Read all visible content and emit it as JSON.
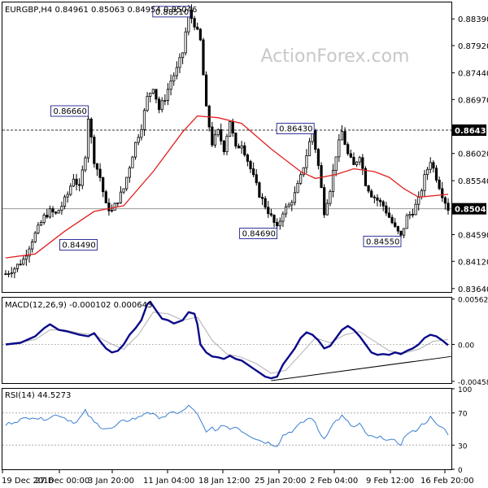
{
  "watermark": "ActionForex.com",
  "price_panel": {
    "header": "EURGBP,H4  0.84961 0.85063 0.84954 0.85046",
    "yticks": [
      "0.88390",
      "0.87920",
      "0.87440",
      "0.86970",
      "0.86020",
      "0.85540",
      "0.84590",
      "0.84120",
      "0.83640"
    ],
    "current_price": "0.85046",
    "resistance_label": "0.86430"
  },
  "macd_panel": {
    "header": "MACD(12,26,9) -0.000102 0.000643",
    "yticks": [
      "0.005627",
      "0.00",
      "-0.004586"
    ]
  },
  "rsi_panel": {
    "header": "RSI(14) 44.5273",
    "yticks": [
      "100",
      "70",
      "30",
      "0"
    ]
  },
  "xticks": [
    "19 Dec 2016",
    "27 Dec 00:00",
    "3 Jan 20:00",
    "11 Jan 04:00",
    "18 Jan 12:00",
    "25 Jan 20:00",
    "2 Feb 04:00",
    "9 Feb 12:00",
    "16 Feb 20:00"
  ],
  "colors": {
    "candles": "#000000",
    "ma": "#e02020",
    "macd": "#0a0a8a",
    "signal": "#b0b0b0",
    "rsi": "#3b7fd0",
    "grid": "#d8d8d8",
    "hline": "#333333",
    "watermark": "#c8c8c8",
    "label_border": "#000080"
  },
  "chart_data": [
    {
      "type": "candlestick",
      "title": "EURGBP,H4",
      "ohlc_header": {
        "open": 0.84961,
        "high": 0.85063,
        "low": 0.84954,
        "close": 0.85046
      },
      "ylim": [
        0.8358,
        0.8868
      ],
      "close_path": [
        [
          0,
          0.839
        ],
        [
          3,
          0.84
        ],
        [
          6,
          0.8415
        ],
        [
          9,
          0.845
        ],
        [
          11,
          0.847
        ],
        [
          13,
          0.849
        ],
        [
          15,
          0.85
        ],
        [
          17,
          0.8495
        ],
        [
          19,
          0.851
        ],
        [
          21,
          0.853
        ],
        [
          23,
          0.856
        ],
        [
          25,
          0.854
        ],
        [
          27,
          0.86
        ],
        [
          28,
          0.8666
        ],
        [
          30,
          0.859
        ],
        [
          32,
          0.856
        ],
        [
          34,
          0.851
        ],
        [
          36,
          0.85
        ],
        [
          38,
          0.852
        ],
        [
          40,
          0.854
        ],
        [
          42,
          0.858
        ],
        [
          44,
          0.862
        ],
        [
          46,
          0.865
        ],
        [
          48,
          0.87
        ],
        [
          50,
          0.872
        ],
        [
          52,
          0.868
        ],
        [
          54,
          0.87
        ],
        [
          56,
          0.873
        ],
        [
          58,
          0.875
        ],
        [
          60,
          0.878
        ],
        [
          62,
          0.8851
        ],
        [
          64,
          0.883
        ],
        [
          66,
          0.88
        ],
        [
          68,
          0.868
        ],
        [
          70,
          0.862
        ],
        [
          72,
          0.864
        ],
        [
          74,
          0.861
        ],
        [
          76,
          0.866
        ],
        [
          78,
          0.861
        ],
        [
          80,
          0.862
        ],
        [
          82,
          0.859
        ],
        [
          84,
          0.856
        ],
        [
          86,
          0.853
        ],
        [
          88,
          0.851
        ],
        [
          90,
          0.849
        ],
        [
          92,
          0.8469
        ],
        [
          94,
          0.85
        ],
        [
          96,
          0.851
        ],
        [
          98,
          0.853
        ],
        [
          100,
          0.856
        ],
        [
          102,
          0.86
        ],
        [
          104,
          0.8643
        ],
        [
          106,
          0.858
        ],
        [
          108,
          0.85
        ],
        [
          110,
          0.854
        ],
        [
          112,
          0.86
        ],
        [
          114,
          0.864
        ],
        [
          116,
          0.86
        ],
        [
          118,
          0.858
        ],
        [
          120,
          0.86
        ],
        [
          122,
          0.855
        ],
        [
          124,
          0.853
        ],
        [
          126,
          0.852
        ],
        [
          128,
          0.851
        ],
        [
          130,
          0.849
        ],
        [
          132,
          0.847
        ],
        [
          134,
          0.8455
        ],
        [
          136,
          0.849
        ],
        [
          138,
          0.85
        ],
        [
          140,
          0.852
        ],
        [
          142,
          0.856
        ],
        [
          144,
          0.859
        ],
        [
          146,
          0.856
        ],
        [
          148,
          0.853
        ],
        [
          150,
          0.8505
        ]
      ],
      "moving_average": [
        [
          0,
          0.8418
        ],
        [
          10,
          0.8425
        ],
        [
          20,
          0.8465
        ],
        [
          30,
          0.85
        ],
        [
          40,
          0.851
        ],
        [
          50,
          0.857
        ],
        [
          60,
          0.864
        ],
        [
          65,
          0.8668
        ],
        [
          72,
          0.8665
        ],
        [
          80,
          0.8655
        ],
        [
          90,
          0.861
        ],
        [
          100,
          0.857
        ],
        [
          105,
          0.8558
        ],
        [
          112,
          0.8565
        ],
        [
          118,
          0.8575
        ],
        [
          125,
          0.857
        ],
        [
          130,
          0.856
        ],
        [
          135,
          0.854
        ],
        [
          140,
          0.8525
        ],
        [
          150,
          0.853
        ]
      ],
      "labeled_levels": [
        {
          "value": 0.8851,
          "bar": 62
        },
        {
          "value": 0.8666,
          "bar": 28
        },
        {
          "value": 0.8643,
          "bar": 104
        },
        {
          "value": 0.8449,
          "bar": 31
        },
        {
          "value": 0.8469,
          "bar": 92
        },
        {
          "value": 0.8455,
          "bar": 134
        }
      ],
      "horizontal_lines": [
        0.8643,
        0.85046
      ],
      "bars": 151
    },
    {
      "type": "line",
      "title": "MACD(12,26,9)",
      "ylim": [
        -0.0048,
        0.0058
      ],
      "macd": [
        [
          0,
          0.0
        ],
        [
          5,
          0.0002
        ],
        [
          10,
          0.001
        ],
        [
          13,
          0.002
        ],
        [
          15,
          0.0025
        ],
        [
          18,
          0.0018
        ],
        [
          21,
          0.0016
        ],
        [
          25,
          0.0012
        ],
        [
          28,
          0.001
        ],
        [
          30,
          0.0014
        ],
        [
          32,
          0.0004
        ],
        [
          34,
          -0.0005
        ],
        [
          36,
          -0.001
        ],
        [
          38,
          -0.0008
        ],
        [
          40,
          0.0
        ],
        [
          42,
          0.0012
        ],
        [
          44,
          0.002
        ],
        [
          46,
          0.003
        ],
        [
          48,
          0.005
        ],
        [
          49,
          0.0053
        ],
        [
          51,
          0.0042
        ],
        [
          53,
          0.0032
        ],
        [
          55,
          0.003
        ],
        [
          57,
          0.0026
        ],
        [
          60,
          0.003
        ],
        [
          62,
          0.004
        ],
        [
          64,
          0.0038
        ],
        [
          65,
          0.0025
        ],
        [
          66,
          0.0
        ],
        [
          68,
          -0.001
        ],
        [
          70,
          -0.0015
        ],
        [
          72,
          -0.0016
        ],
        [
          74,
          -0.0018
        ],
        [
          76,
          -0.0014
        ],
        [
          78,
          -0.0018
        ],
        [
          80,
          -0.002
        ],
        [
          82,
          -0.0025
        ],
        [
          84,
          -0.003
        ],
        [
          86,
          -0.0035
        ],
        [
          88,
          -0.004
        ],
        [
          90,
          -0.0042
        ],
        [
          92,
          -0.004
        ],
        [
          94,
          -0.0025
        ],
        [
          96,
          -0.0015
        ],
        [
          98,
          -0.0005
        ],
        [
          100,
          0.0008
        ],
        [
          102,
          0.0015
        ],
        [
          104,
          0.0012
        ],
        [
          106,
          0.0005
        ],
        [
          108,
          -0.0005
        ],
        [
          110,
          -0.0002
        ],
        [
          112,
          0.0008
        ],
        [
          114,
          0.0018
        ],
        [
          116,
          0.0023
        ],
        [
          118,
          0.0018
        ],
        [
          120,
          0.001
        ],
        [
          122,
          0.0
        ],
        [
          124,
          -0.001
        ],
        [
          126,
          -0.0013
        ],
        [
          128,
          -0.0012
        ],
        [
          130,
          -0.0013
        ],
        [
          132,
          -0.001
        ],
        [
          134,
          -0.0012
        ],
        [
          136,
          -0.0008
        ],
        [
          138,
          -0.0005
        ],
        [
          140,
          0.0
        ],
        [
          142,
          0.0008
        ],
        [
          144,
          0.0012
        ],
        [
          146,
          0.001
        ],
        [
          148,
          0.0005
        ],
        [
          150,
          -0.0001
        ]
      ],
      "signal": [
        [
          0,
          0.0
        ],
        [
          10,
          0.0006
        ],
        [
          15,
          0.0018
        ],
        [
          20,
          0.0018
        ],
        [
          25,
          0.0014
        ],
        [
          30,
          0.0012
        ],
        [
          35,
          0.0002
        ],
        [
          40,
          -0.0006
        ],
        [
          45,
          0.0012
        ],
        [
          50,
          0.004
        ],
        [
          55,
          0.0038
        ],
        [
          60,
          0.003
        ],
        [
          65,
          0.0034
        ],
        [
          70,
          0.0005
        ],
        [
          75,
          -0.0012
        ],
        [
          80,
          -0.0016
        ],
        [
          85,
          -0.0024
        ],
        [
          90,
          -0.0036
        ],
        [
          95,
          -0.0032
        ],
        [
          100,
          -0.0012
        ],
        [
          105,
          0.0008
        ],
        [
          110,
          0.0002
        ],
        [
          115,
          0.0012
        ],
        [
          120,
          0.0016
        ],
        [
          125,
          0.0004
        ],
        [
          130,
          -0.0008
        ],
        [
          135,
          -0.0011
        ],
        [
          140,
          -0.0006
        ],
        [
          145,
          0.0004
        ],
        [
          150,
          0.0006
        ]
      ],
      "trendline": [
        [
          90,
          -0.0045
        ],
        [
          151,
          -0.0015
        ]
      ]
    },
    {
      "type": "line",
      "title": "RSI(14)",
      "ylim": [
        0,
        100
      ],
      "reference_levels": [
        70,
        30
      ],
      "values": [
        [
          0,
          55
        ],
        [
          3,
          60
        ],
        [
          6,
          62
        ],
        [
          9,
          66
        ],
        [
          12,
          62
        ],
        [
          15,
          65
        ],
        [
          18,
          68
        ],
        [
          21,
          62
        ],
        [
          24,
          58
        ],
        [
          27,
          72
        ],
        [
          30,
          58
        ],
        [
          33,
          52
        ],
        [
          36,
          50
        ],
        [
          39,
          58
        ],
        [
          42,
          62
        ],
        [
          45,
          64
        ],
        [
          48,
          72
        ],
        [
          51,
          65
        ],
        [
          54,
          66
        ],
        [
          57,
          70
        ],
        [
          60,
          72
        ],
        [
          62,
          78
        ],
        [
          64,
          74
        ],
        [
          66,
          60
        ],
        [
          68,
          45
        ],
        [
          70,
          52
        ],
        [
          72,
          48
        ],
        [
          74,
          56
        ],
        [
          76,
          50
        ],
        [
          78,
          54
        ],
        [
          80,
          48
        ],
        [
          82,
          44
        ],
        [
          84,
          40
        ],
        [
          86,
          36
        ],
        [
          88,
          34
        ],
        [
          90,
          32
        ],
        [
          92,
          30
        ],
        [
          94,
          42
        ],
        [
          96,
          46
        ],
        [
          98,
          50
        ],
        [
          100,
          56
        ],
        [
          102,
          62
        ],
        [
          104,
          64
        ],
        [
          106,
          48
        ],
        [
          108,
          38
        ],
        [
          110,
          52
        ],
        [
          112,
          60
        ],
        [
          114,
          66
        ],
        [
          116,
          58
        ],
        [
          118,
          52
        ],
        [
          120,
          56
        ],
        [
          122,
          44
        ],
        [
          124,
          40
        ],
        [
          126,
          38
        ],
        [
          128,
          40
        ],
        [
          130,
          36
        ],
        [
          132,
          34
        ],
        [
          134,
          32
        ],
        [
          136,
          44
        ],
        [
          138,
          46
        ],
        [
          140,
          52
        ],
        [
          142,
          58
        ],
        [
          144,
          64
        ],
        [
          146,
          55
        ],
        [
          148,
          52
        ],
        [
          150,
          44.5
        ]
      ]
    }
  ]
}
